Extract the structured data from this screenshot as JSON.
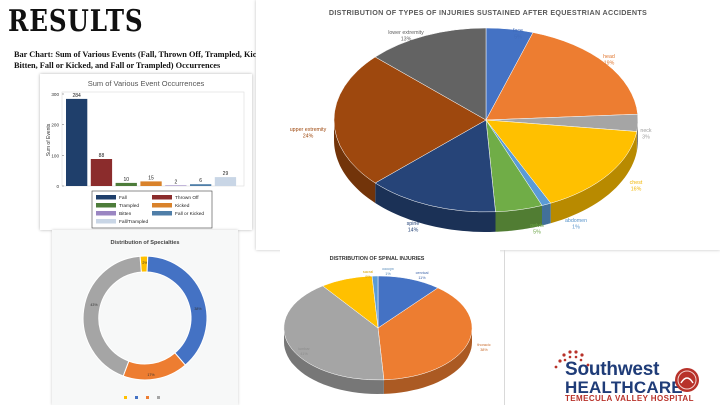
{
  "page": {
    "title": "RESULTS",
    "subtitle": "Bar Chart: Sum of Various Events (Fall, Thrown Off, Trampled, Kicked Bitten, Fall or Kicked, and Fall or Trampled) Occurrences"
  },
  "logo": {
    "line1": "Southwest",
    "line2": "HEALTHCARE",
    "line3": "TEMECULA VALLEY HOSPITAL",
    "brand_blue": "#1f3c78",
    "brand_red": "#b8322a"
  },
  "chart_data": [
    {
      "id": "injuries",
      "type": "pie",
      "title": "DISTRIBUTION OF TYPES OF INJURIES SUSTAINED AFTER EQUESTRIAN ACCIDENTS",
      "slices": [
        {
          "label": "face",
          "pct": "5%",
          "value": 5,
          "color": "#4472c4"
        },
        {
          "label": "head",
          "pct": "19%",
          "value": 19,
          "color": "#ed7d31"
        },
        {
          "label": "neck",
          "pct": "3%",
          "value": 3,
          "color": "#a5a5a5"
        },
        {
          "label": "chest",
          "pct": "16%",
          "value": 16,
          "color": "#ffc000"
        },
        {
          "label": "abdomen",
          "pct": "1%",
          "value": 1,
          "color": "#5b9bd5"
        },
        {
          "label": "pelvis",
          "pct": "5%",
          "value": 5,
          "color": "#70ad47"
        },
        {
          "label": "spine",
          "pct": "14%",
          "value": 14,
          "color": "#264478"
        },
        {
          "label": "upper extremity",
          "pct": "24%",
          "value": 24,
          "color": "#9e480e"
        },
        {
          "label": "lower extremity",
          "pct": "13%",
          "value": 13,
          "color": "#636363"
        }
      ]
    },
    {
      "id": "events",
      "type": "bar",
      "title": "Sum of Various Event Occurrences",
      "ylabel": "Sum of Events",
      "ylim": [
        0,
        300
      ],
      "yticks": [
        0,
        100,
        200,
        300
      ],
      "categories": [
        "Fall",
        "Thrown Off",
        "Trampled",
        "Kicked",
        "Bitten",
        "Fall or Kicked",
        "Fall/Trampled"
      ],
      "values": [
        284,
        88,
        10,
        15,
        2,
        6,
        29
      ],
      "colors": [
        "#1f3f6b",
        "#8b2c2c",
        "#4d7c3a",
        "#d9822b",
        "#9a86c2",
        "#4f7ea8",
        "#c9d6e6"
      ]
    },
    {
      "id": "specialties",
      "type": "pie",
      "title": "Distribution of Specialties",
      "donut": true,
      "slices": [
        {
          "label": "",
          "pct": "2%",
          "value": 2,
          "color": "#ffc000"
        },
        {
          "label": "",
          "pct": "38%",
          "value": 38,
          "color": "#4472c4"
        },
        {
          "label": "",
          "pct": "17%",
          "value": 17,
          "color": "#ed7d31"
        },
        {
          "label": "",
          "pct": "43%",
          "value": 43,
          "color": "#a5a5a5"
        }
      ]
    },
    {
      "id": "spinal",
      "type": "pie",
      "title": "DISTRIBUTION OF SPINAL INJURIES",
      "slices": [
        {
          "label": "cervical",
          "pct": "11%",
          "value": 11,
          "color": "#4472c4"
        },
        {
          "label": "thoracic",
          "pct": "38%",
          "value": 38,
          "color": "#ed7d31"
        },
        {
          "label": "lumbar",
          "pct": "41%",
          "value": 41,
          "color": "#a5a5a5"
        },
        {
          "label": "sacral",
          "pct": "9%",
          "value": 9,
          "color": "#ffc000"
        },
        {
          "label": "coccyx",
          "pct": "1%",
          "value": 1,
          "color": "#5b9bd5"
        }
      ]
    }
  ]
}
